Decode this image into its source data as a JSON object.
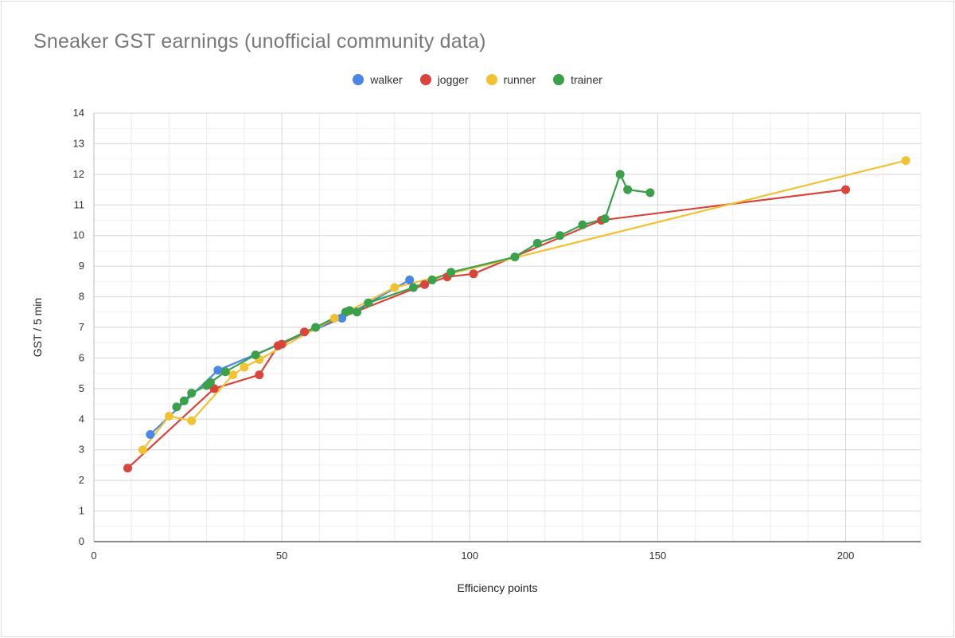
{
  "chart_data": {
    "type": "line",
    "title": "Sneaker GST earnings (unofficial community data)",
    "xlabel": "Efficiency points",
    "ylabel": "GST / 5 min",
    "xlim": [
      0,
      220
    ],
    "ylim": [
      0,
      14
    ],
    "x_ticks": [
      0,
      50,
      100,
      150,
      200
    ],
    "y_ticks": [
      0,
      1,
      2,
      3,
      4,
      5,
      6,
      7,
      8,
      9,
      10,
      11,
      12,
      13,
      14
    ],
    "grid": true,
    "legend_position": "top",
    "series": [
      {
        "name": "walker",
        "color": "#4a86e8",
        "points": [
          [
            15,
            3.5
          ],
          [
            33,
            5.6
          ],
          [
            66,
            7.3
          ],
          [
            84,
            8.55
          ]
        ]
      },
      {
        "name": "jogger",
        "color": "#d9443b",
        "points": [
          [
            9,
            2.4
          ],
          [
            32,
            5.0
          ],
          [
            44,
            5.45
          ],
          [
            49,
            6.4
          ],
          [
            50,
            6.45
          ],
          [
            56,
            6.85
          ],
          [
            88,
            8.4
          ],
          [
            94,
            8.65
          ],
          [
            101,
            8.75
          ],
          [
            135,
            10.5
          ],
          [
            200,
            11.5
          ]
        ]
      },
      {
        "name": "runner",
        "color": "#f1c232",
        "points": [
          [
            13,
            3.0
          ],
          [
            20,
            4.1
          ],
          [
            26,
            3.95
          ],
          [
            37,
            5.45
          ],
          [
            40,
            5.7
          ],
          [
            44,
            5.95
          ],
          [
            64,
            7.3
          ],
          [
            80,
            8.3
          ],
          [
            216,
            12.45
          ]
        ]
      },
      {
        "name": "trainer",
        "color": "#3aa14a",
        "points": [
          [
            22,
            4.4
          ],
          [
            24,
            4.6
          ],
          [
            26,
            4.85
          ],
          [
            30,
            5.1
          ],
          [
            31,
            5.2
          ],
          [
            35,
            5.55
          ],
          [
            43,
            6.1
          ],
          [
            59,
            7.0
          ],
          [
            67,
            7.5
          ],
          [
            68,
            7.55
          ],
          [
            70,
            7.5
          ],
          [
            73,
            7.8
          ],
          [
            85,
            8.3
          ],
          [
            90,
            8.55
          ],
          [
            95,
            8.8
          ],
          [
            112,
            9.3
          ],
          [
            118,
            9.75
          ],
          [
            124,
            10.0
          ],
          [
            130,
            10.35
          ],
          [
            136,
            10.55
          ],
          [
            140,
            12.0
          ],
          [
            142,
            11.5
          ],
          [
            148,
            11.4
          ]
        ]
      }
    ]
  }
}
